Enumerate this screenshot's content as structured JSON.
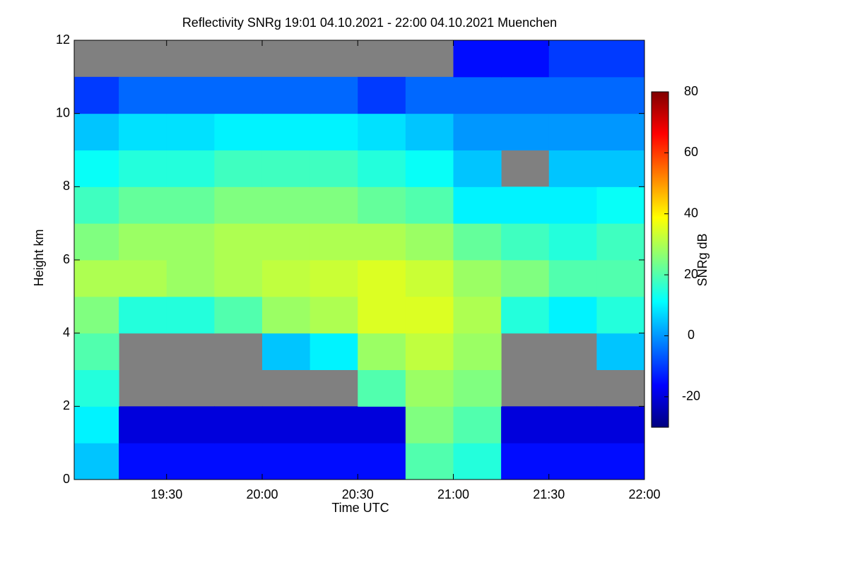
{
  "chart_data": {
    "type": "heatmap",
    "title": "Reflectivity SNRg   19:01 04.10.2021 - 22:00 04.10.2021 Muenchen",
    "xlabel": "Time UTC",
    "ylabel": "Height km",
    "colorbar_label": "SNRg dB",
    "xlim": [
      1141,
      1320
    ],
    "xticks": [
      {
        "value": 1170,
        "label": "19:30"
      },
      {
        "value": 1200,
        "label": "20:00"
      },
      {
        "value": 1230,
        "label": "20:30"
      },
      {
        "value": 1260,
        "label": "21:00"
      },
      {
        "value": 1290,
        "label": "21:30"
      },
      {
        "value": 1320,
        "label": "22:00"
      }
    ],
    "ylim": [
      0,
      12
    ],
    "yticks": [
      0,
      2,
      4,
      6,
      8,
      10,
      12
    ],
    "clim": [
      -30,
      80
    ],
    "cticks": [
      -20,
      0,
      20,
      40,
      60,
      80
    ],
    "colormap": "jet",
    "missing_color": "#808080",
    "xbins": [
      1141,
      1155,
      1170,
      1185,
      1200,
      1215,
      1230,
      1245,
      1260,
      1275,
      1290,
      1305,
      1320
    ],
    "ybins": [
      0,
      1,
      2,
      3,
      4,
      5,
      6,
      7,
      8,
      9,
      10,
      11,
      12
    ],
    "z": [
      [
        5,
        -15,
        -15,
        -15,
        -15,
        -15,
        -15,
        20,
        15,
        -15,
        -15,
        -15
      ],
      [
        10,
        -20,
        -20,
        -20,
        -20,
        -20,
        -20,
        25,
        20,
        -20,
        -20,
        -20
      ],
      [
        15,
        null,
        null,
        null,
        null,
        null,
        20,
        28,
        25,
        null,
        null,
        null
      ],
      [
        20,
        null,
        null,
        null,
        5,
        10,
        28,
        32,
        28,
        null,
        null,
        5
      ],
      [
        25,
        15,
        15,
        20,
        28,
        30,
        35,
        35,
        30,
        15,
        10,
        15
      ],
      [
        30,
        30,
        28,
        30,
        32,
        33,
        35,
        33,
        28,
        25,
        20,
        20
      ],
      [
        25,
        28,
        28,
        30,
        30,
        30,
        30,
        28,
        22,
        18,
        15,
        18
      ],
      [
        18,
        22,
        22,
        25,
        25,
        25,
        22,
        20,
        10,
        10,
        10,
        12
      ],
      [
        12,
        15,
        15,
        18,
        18,
        18,
        15,
        12,
        5,
        null,
        5,
        5
      ],
      [
        5,
        8,
        8,
        10,
        10,
        10,
        8,
        5,
        0,
        0,
        0,
        0
      ],
      [
        -10,
        -5,
        -5,
        -5,
        -5,
        -5,
        -10,
        -5,
        -5,
        -5,
        -5,
        -5
      ],
      [
        null,
        null,
        null,
        null,
        null,
        null,
        null,
        null,
        -15,
        -15,
        -10,
        -10
      ]
    ]
  }
}
